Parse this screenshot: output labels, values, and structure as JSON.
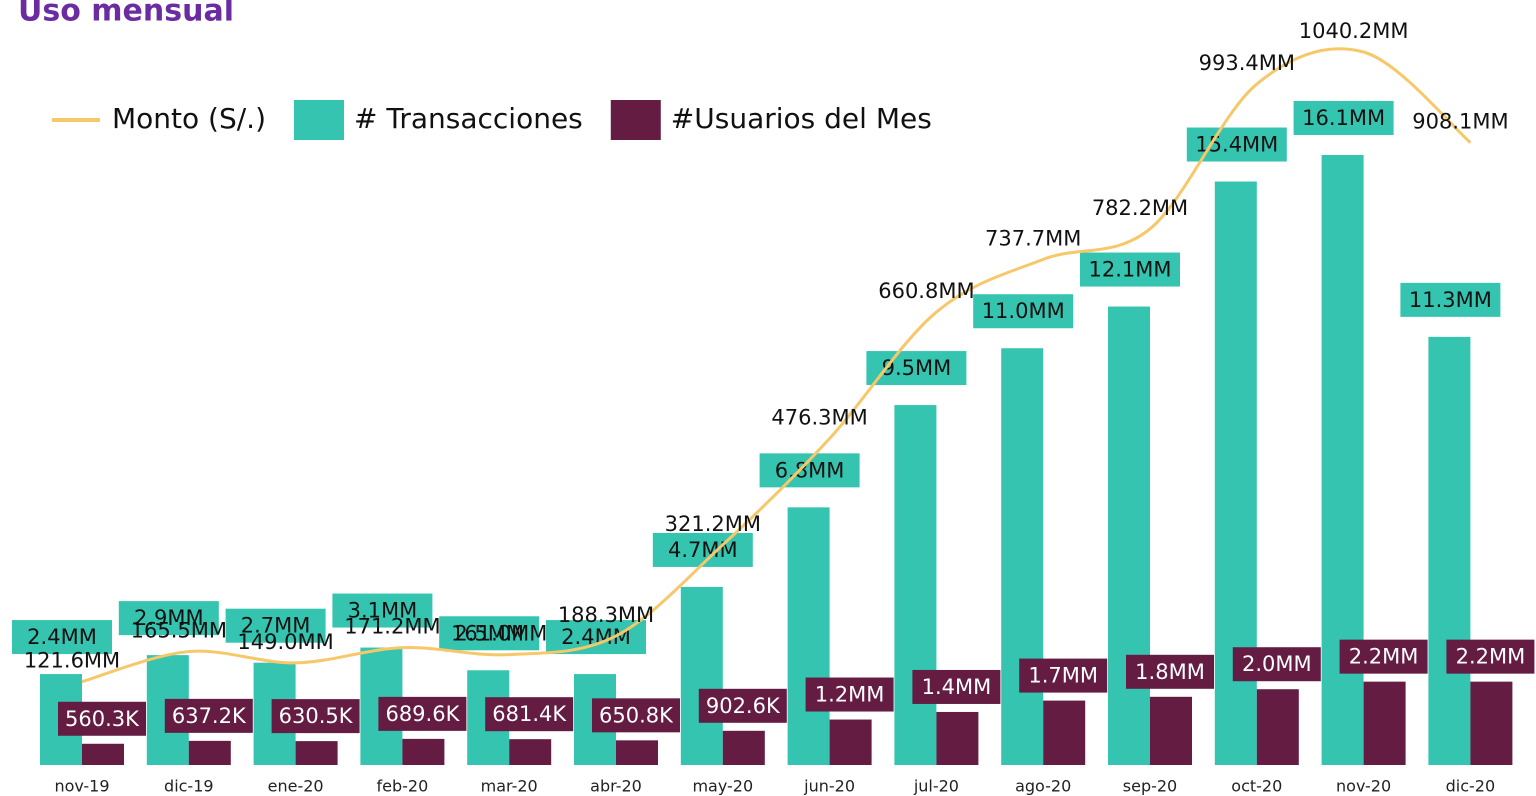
{
  "chart_data": {
    "type": "bar",
    "title": "Uso mensual",
    "categories": [
      "nov-19",
      "dic-19",
      "ene-20",
      "feb-20",
      "mar-20",
      "abr-20",
      "may-20",
      "jun-20",
      "jul-20",
      "ago-20",
      "sep-20",
      "oct-20",
      "nov-20",
      "dic-20"
    ],
    "series": [
      {
        "name": "Monto (S/.)",
        "type": "line",
        "color": "#f6c86a",
        "values": [
          121600000,
          165500000,
          149000000,
          171200000,
          161000000,
          188300000,
          321200000,
          476300000,
          660800000,
          737700000,
          782200000,
          993400000,
          1040200000,
          908100000
        ],
        "value_labels": [
          "121.6MM",
          "165.5MM",
          "149.0MM",
          "171.2MM",
          "161.0MM",
          "188.3MM",
          "321.2MM",
          "476.3MM",
          "660.8MM",
          "737.7MM",
          "782.2MM",
          "993.4MM",
          "1040.2MM",
          "908.1MM"
        ]
      },
      {
        "name": "# Transacciones",
        "type": "bar",
        "color": "#35c4b0",
        "values": [
          2400000,
          2900000,
          2700000,
          3100000,
          2500000,
          2400000,
          4700000,
          6800000,
          9500000,
          11000000,
          12100000,
          15400000,
          16100000,
          11300000
        ],
        "value_labels": [
          "2.4MM",
          "2.9MM",
          "2.7MM",
          "3.1MM",
          "2.5MM",
          "2.4MM",
          "4.7MM",
          "6.8MM",
          "9.5MM",
          "11.0MM",
          "12.1MM",
          "15.4MM",
          "16.1MM",
          "11.3MM"
        ]
      },
      {
        "name": "#Usuarios del Mes",
        "type": "bar",
        "color": "#641c43",
        "values": [
          560300,
          637200,
          630500,
          689600,
          681400,
          650800,
          902600,
          1200000,
          1400000,
          1700000,
          1800000,
          2000000,
          2200000,
          2200000
        ],
        "value_labels": [
          "560.3K",
          "637.2K",
          "630.5K",
          "689.6K",
          "681.4K",
          "650.8K",
          "902.6K",
          "1.2MM",
          "1.4MM",
          "1.7MM",
          "1.8MM",
          "2.0MM",
          "2.2MM",
          "2.2MM"
        ]
      }
    ]
  }
}
